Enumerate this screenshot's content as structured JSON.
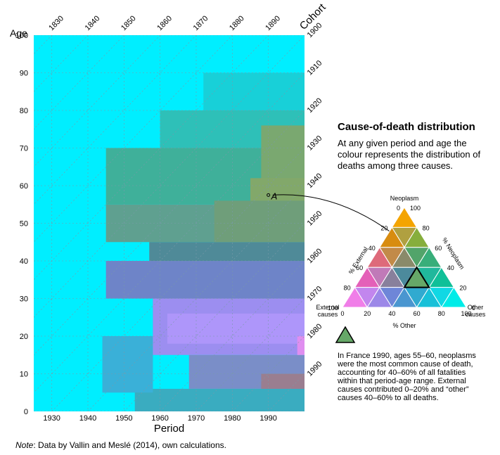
{
  "chart_data": {
    "type": "heatmap",
    "title": "",
    "xlabel": "Period",
    "ylabel": "Age",
    "secondary_label": "Cohort",
    "xlim": [
      1925,
      2000
    ],
    "ylim": [
      0,
      100
    ],
    "x_ticks": [
      1930,
      1940,
      1950,
      1960,
      1970,
      1980,
      1990
    ],
    "y_ticks": [
      0,
      10,
      20,
      30,
      40,
      50,
      60,
      70,
      80,
      90,
      100
    ],
    "cohort_ticks_top": [
      1830,
      1840,
      1850,
      1860,
      1870,
      1880,
      1890
    ],
    "cohort_ticks_right": [
      1900,
      1910,
      1920,
      1930,
      1940,
      1950,
      1960,
      1970,
      1980,
      1990
    ],
    "grid": true,
    "background_color": "#00eeff",
    "regions": [
      {
        "x0": 1953,
        "x1": 2000,
        "y0": 0,
        "y1": 6,
        "color": "#3aacc0"
      },
      {
        "x0": 1968,
        "x1": 2000,
        "y0": 6,
        "y1": 15,
        "color": "#7a8ec8"
      },
      {
        "x0": 1944,
        "x1": 1958,
        "y0": 5,
        "y1": 20,
        "color": "#3ab0d8"
      },
      {
        "x0": 1958,
        "x1": 2000,
        "y0": 15,
        "y1": 30,
        "color": "#9c8ef0"
      },
      {
        "x0": 1962,
        "x1": 2000,
        "y0": 18,
        "y1": 26,
        "color": "#ae96fa"
      },
      {
        "x0": 1945,
        "x1": 2000,
        "y0": 30,
        "y1": 40,
        "color": "#6e84c8"
      },
      {
        "x0": 1957,
        "x1": 2000,
        "y0": 40,
        "y1": 45,
        "color": "#4f8a98"
      },
      {
        "x0": 1945,
        "x1": 2000,
        "y0": 45,
        "y1": 55,
        "color": "#5fa090"
      },
      {
        "x0": 1945,
        "x1": 2000,
        "y0": 55,
        "y1": 70,
        "color": "#3fb09a"
      },
      {
        "x0": 1960,
        "x1": 2000,
        "y0": 70,
        "y1": 80,
        "color": "#2ec0b8"
      },
      {
        "x0": 1972,
        "x1": 2000,
        "y0": 80,
        "y1": 90,
        "color": "#18d0d8"
      },
      {
        "x0": 1988,
        "x1": 2000,
        "y0": 56,
        "y1": 76,
        "color": "#7aa870"
      },
      {
        "x0": 1985,
        "x1": 2000,
        "y0": 52,
        "y1": 62,
        "color": "#82a86a"
      },
      {
        "x0": 1975,
        "x1": 2000,
        "y0": 45,
        "y1": 56,
        "color": "#6f9e7a"
      },
      {
        "x0": 1988,
        "x1": 2000,
        "y0": 6,
        "y1": 10,
        "color": "#9a7e90"
      },
      {
        "x0": 1998,
        "x1": 2000,
        "y0": 15,
        "y1": 20,
        "color": "#e08ef0"
      }
    ],
    "annotation_point": {
      "x": 1990,
      "y": 57.5,
      "label": "A"
    }
  },
  "legend": {
    "title": "Cause-of-death distribution",
    "description": "At any given period and age the colour represents the distribution of deaths among three causes.",
    "ternary": {
      "top_label": "Neoplasm",
      "left_label_line1": "External",
      "left_label_line2": "causes",
      "right_label_line1": "Other",
      "right_label_line2": "causes",
      "left_axis_label": "% External",
      "right_axis_label": "% Neoplasm",
      "bottom_axis_label": "% Other",
      "ticks": [
        "0",
        "20",
        "40",
        "60",
        "80",
        "100"
      ],
      "cell_colors_by_row": [
        [
          "#f4a400"
        ],
        [
          "#d88c10",
          "#b0a040",
          "#86ae3c"
        ],
        [
          "#de6a7a",
          "#c28a48",
          "#8a8a6a",
          "#52a46a",
          "#38ae7a"
        ],
        [
          "#e460b8",
          "#c07ab8",
          "#88809c",
          "#4c8a9c",
          "#3aa09a",
          "#20b89c",
          "#10c098"
        ],
        [
          "#f07ee8",
          "#c286ee",
          "#9c88e8",
          "#6e86d8",
          "#4a96d0",
          "#30aad0",
          "#18c0d8",
          "#10d8e4",
          "#00ece8"
        ]
      ],
      "highlight_color": "#66a868"
    },
    "example_text": "In France 1990, ages 55–60, neoplasms were the most common cause of death, accounting for 40–60% of all fatalities within that period-age range. External causes contributed 0–20% and “other” causes 40–60% to all deaths."
  },
  "note_label": "Note",
  "note_text": ": Data by Vallin and Meslé (2014), own calculations."
}
